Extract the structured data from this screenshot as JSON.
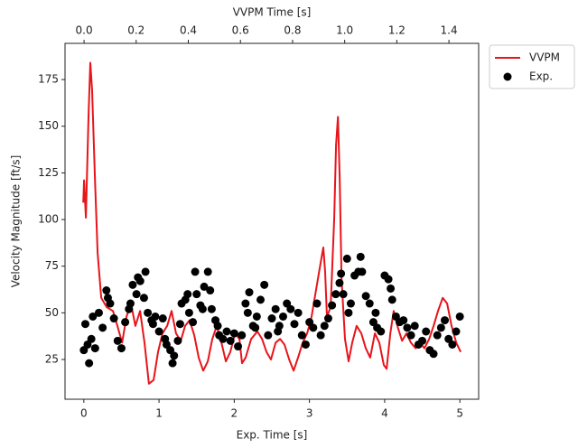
{
  "chart_data": {
    "type": "line",
    "xlabel": "Exp. Time [s]",
    "x2label": "VVPM Time [s]",
    "ylabel": "Velocity Magnitude [ft/s]",
    "xlim": [
      -0.25,
      5.25
    ],
    "xticks": [
      0,
      1,
      2,
      3,
      4,
      5
    ],
    "x2lim": [
      -0.073,
      1.514
    ],
    "x2ticks": [
      {
        "value": 0,
        "label": "0.0"
      },
      0.2,
      0.4,
      0.6,
      0.8,
      {
        "value": 1,
        "label": "1.0"
      },
      1.2,
      1.4
    ],
    "ylim": [
      3.7,
      194.4
    ],
    "yticks": [
      25,
      50,
      75,
      100,
      125,
      150,
      175
    ],
    "grid": false,
    "legend": "outside upper right",
    "series": [
      {
        "name": "VVPM",
        "type": "line",
        "axis": "x2",
        "color": "#e8141a",
        "x": [
          -0.003,
          0,
          0.007,
          0.017,
          0.024,
          0.031,
          0.042,
          0.052,
          0.066,
          0.087,
          0.111,
          0.128,
          0.146,
          0.163,
          0.18,
          0.197,
          0.215,
          0.232,
          0.249,
          0.267,
          0.284,
          0.301,
          0.319,
          0.336,
          0.353,
          0.371,
          0.388,
          0.405,
          0.423,
          0.44,
          0.457,
          0.475,
          0.492,
          0.509,
          0.527,
          0.544,
          0.561,
          0.579,
          0.596,
          0.606,
          0.62,
          0.641,
          0.665,
          0.683,
          0.7,
          0.717,
          0.735,
          0.752,
          0.769,
          0.787,
          0.804,
          0.821,
          0.839,
          0.856,
          0.873,
          0.891,
          0.908,
          0.918,
          0.925,
          0.932,
          0.946,
          0.96,
          0.967,
          0.974,
          0.981,
          0.988,
          1.001,
          1.015,
          1.029,
          1.046,
          1.064,
          1.081,
          1.098,
          1.116,
          1.133,
          1.15,
          1.161,
          1.175,
          1.188,
          1.202,
          1.22,
          1.237,
          1.254,
          1.272,
          1.289,
          1.306,
          1.324,
          1.341,
          1.358,
          1.376,
          1.393,
          1.41,
          1.428,
          1.445
        ],
        "values": [
          109,
          121,
          101,
          155,
          184,
          169,
          121,
          82,
          58,
          53,
          51,
          43,
          34,
          48,
          55,
          43,
          51,
          34,
          12,
          14,
          29,
          39,
          43,
          51,
          39,
          35,
          43,
          46,
          38,
          26,
          19,
          24,
          36,
          43,
          34,
          24,
          29,
          39,
          36,
          23,
          26,
          36,
          40,
          36,
          29,
          25,
          34,
          36,
          33,
          25,
          19,
          26,
          34,
          39,
          48,
          63,
          77,
          85,
          72,
          48,
          53,
          101,
          140,
          155,
          121,
          68,
          36,
          24,
          34,
          43,
          39,
          31,
          26,
          39,
          34,
          22,
          20,
          39,
          51,
          43,
          35,
          39,
          34,
          31,
          34,
          31,
          36,
          43,
          51,
          58,
          55,
          43,
          34,
          29
        ]
      },
      {
        "name": "Exp.",
        "type": "scatter",
        "color": "#000000",
        "x": [
          0,
          0.02,
          0.05,
          0.07,
          0.1,
          0.12,
          0.15,
          0.2,
          0.25,
          0.3,
          0.32,
          0.35,
          0.4,
          0.45,
          0.5,
          0.55,
          0.6,
          0.62,
          0.65,
          0.7,
          0.72,
          0.75,
          0.8,
          0.82,
          0.85,
          0.9,
          0.92,
          0.95,
          1,
          1.05,
          1.08,
          1.1,
          1.15,
          1.18,
          1.2,
          1.25,
          1.28,
          1.3,
          1.35,
          1.38,
          1.4,
          1.45,
          1.48,
          1.5,
          1.55,
          1.58,
          1.6,
          1.65,
          1.68,
          1.7,
          1.75,
          1.78,
          1.8,
          1.85,
          1.9,
          1.95,
          2,
          2.05,
          2.1,
          2.15,
          2.18,
          2.2,
          2.25,
          2.28,
          2.3,
          2.35,
          2.4,
          2.45,
          2.5,
          2.55,
          2.58,
          2.6,
          2.65,
          2.7,
          2.75,
          2.8,
          2.85,
          2.9,
          2.95,
          3,
          3.05,
          3.1,
          3.15,
          3.2,
          3.25,
          3.3,
          3.35,
          3.4,
          3.42,
          3.45,
          3.5,
          3.52,
          3.55,
          3.6,
          3.65,
          3.68,
          3.7,
          3.75,
          3.8,
          3.85,
          3.88,
          3.9,
          3.95,
          4,
          4.05,
          4.08,
          4.1,
          4.15,
          4.2,
          4.25,
          4.3,
          4.35,
          4.4,
          4.45,
          4.5,
          4.55,
          4.6,
          4.65,
          4.7,
          4.75,
          4.8,
          4.85,
          4.9,
          4.95,
          5
        ],
        "values": [
          30,
          44,
          33,
          23,
          36,
          48,
          31,
          50,
          42,
          62,
          58,
          55,
          47,
          35,
          31,
          45,
          52,
          55,
          65,
          60,
          69,
          67,
          58,
          72,
          50,
          46,
          44,
          48,
          40,
          47,
          36,
          33,
          30,
          23,
          27,
          35,
          44,
          55,
          57,
          60,
          50,
          45,
          72,
          60,
          54,
          52,
          64,
          72,
          62,
          52,
          46,
          43,
          38,
          36,
          40,
          35,
          39,
          32,
          38,
          55,
          50,
          61,
          43,
          42,
          48,
          57,
          65,
          38,
          47,
          52,
          40,
          43,
          48,
          55,
          52,
          44,
          50,
          38,
          33,
          45,
          42,
          55,
          38,
          43,
          47,
          54,
          60,
          66,
          71,
          60,
          79,
          50,
          55,
          70,
          72,
          80,
          72,
          59,
          55,
          45,
          50,
          42,
          40,
          70,
          68,
          63,
          57,
          48,
          45,
          46,
          42,
          38,
          43,
          33,
          35,
          40,
          30,
          28,
          38,
          42,
          46,
          36,
          33,
          40,
          48
        ]
      }
    ]
  }
}
